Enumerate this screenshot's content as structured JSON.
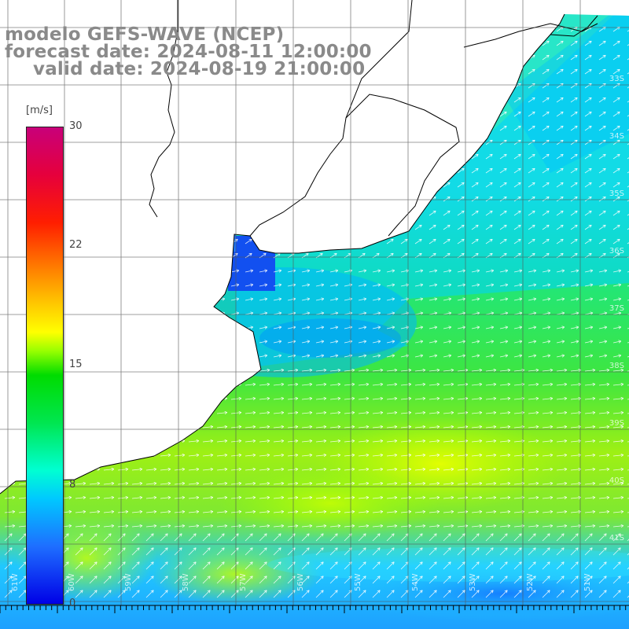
{
  "title": {
    "line1": "modelo GEFS-WAVE (NCEP)",
    "line2": "forecast date: 2024-08-11 12:00:00",
    "line3": "valid date: 2024-08-19 21:00:00"
  },
  "colorbar": {
    "unit": "[m/s]",
    "ticks": [
      "30",
      "22",
      "15",
      "8",
      "0"
    ],
    "min": 0,
    "max": 30
  },
  "lat_labels": [
    "33S",
    "34S",
    "35S",
    "36S",
    "37S",
    "38S",
    "39S",
    "40S",
    "41S"
  ],
  "lon_labels": [
    "61W",
    "60W",
    "59W",
    "58W",
    "57W",
    "56W",
    "55W",
    "54W",
    "53W",
    "52W",
    "51W"
  ],
  "colors": {
    "title": "#8a8a8a",
    "land": "#ffffff",
    "coast": "#000000",
    "grid": "#555555",
    "arrow": "#ffffff"
  }
}
